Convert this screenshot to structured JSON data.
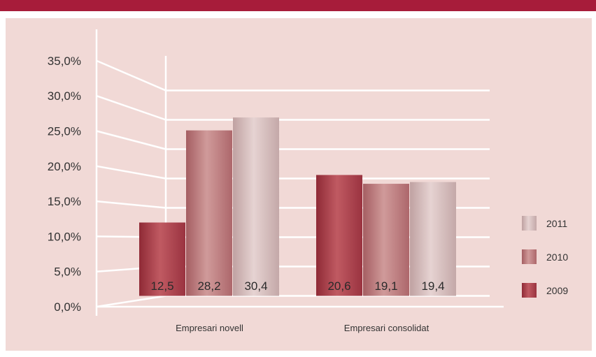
{
  "chart_data": {
    "type": "bar",
    "title": "",
    "xlabel": "",
    "ylabel": "",
    "categories": [
      "Empresari novell",
      "Empresari consolidat"
    ],
    "series": [
      {
        "name": "2009",
        "values": [
          12.5,
          20.6
        ],
        "labels": [
          "12,5",
          "20,6"
        ],
        "color": "#b0464f"
      },
      {
        "name": "2010",
        "values": [
          28.2,
          19.1
        ],
        "labels": [
          "28,2",
          "19,1"
        ],
        "color": "#c17d7e"
      },
      {
        "name": "2011",
        "values": [
          30.4,
          19.4
        ],
        "labels": [
          "30,4",
          "19,4"
        ],
        "color": "#d8bcbb"
      }
    ],
    "y_ticks": [
      "0,0%",
      "5,0%",
      "10,0%",
      "15,0%",
      "20,0%",
      "25,0%",
      "30,0%",
      "35,0%"
    ],
    "ylim": [
      0,
      35
    ],
    "grid": true,
    "legend_position": "right",
    "legend_order": [
      "2011",
      "2010",
      "2009"
    ]
  },
  "colors": {
    "header_bar": "#a71c3a",
    "panel_background": "#f1d9d6",
    "gridline": "#ffffff"
  }
}
